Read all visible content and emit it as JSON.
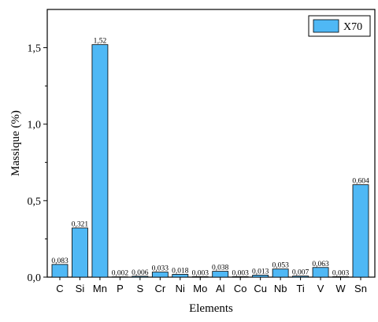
{
  "chart_data": {
    "type": "bar",
    "categories": [
      "C",
      "Si",
      "Mn",
      "P",
      "S",
      "Cr",
      "Ni",
      "Mo",
      "Al",
      "Co",
      "Cu",
      "Nb",
      "Ti",
      "V",
      "W",
      "Sn"
    ],
    "series": [
      {
        "name": "X70",
        "color": "#4fb8f5",
        "values": [
          0.083,
          0.321,
          1.52,
          0.002,
          0.006,
          0.033,
          0.018,
          0.003,
          0.038,
          0.003,
          0.013,
          0.053,
          0.007,
          0.063,
          0.003,
          0.604
        ]
      }
    ],
    "value_labels": [
      "0,083",
      "0,321",
      "1,52",
      "0,002",
      "0,006",
      "0,033",
      "0,018",
      "0,003",
      "0,038",
      "0,003",
      "0,013",
      "0,053",
      "0,007",
      "0,063",
      "0,003",
      "0,604"
    ],
    "xlabel": "Elements",
    "ylabel": "Massique (%)",
    "ylim": [
      0,
      1.75
    ],
    "yticks": [
      0,
      0.5,
      1.0,
      1.5
    ],
    "ytick_labels": [
      "0,0",
      "0,5",
      "1,0",
      "1,5"
    ],
    "legend_position": "top-right",
    "grid": false
  }
}
